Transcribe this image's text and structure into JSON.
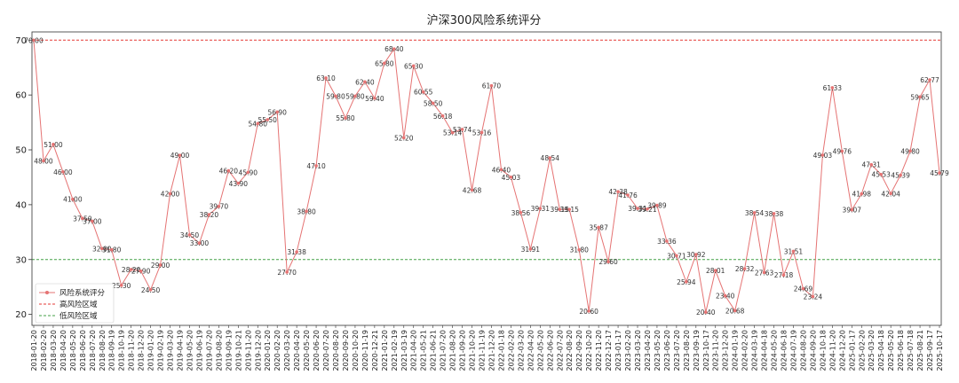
{
  "chart_data": {
    "type": "line",
    "title": "沪深300风险系统评分",
    "xlabel": "",
    "ylabel": "",
    "ylim": [
      18,
      71.5
    ],
    "yticks": [
      20,
      30,
      40,
      50,
      60,
      70
    ],
    "grid": false,
    "legend_placement": "bottom-left",
    "series": [
      {
        "name": "风险系统评分",
        "color": "#e57373",
        "values": [
          70.0,
          48.0,
          51.0,
          46.0,
          41.0,
          37.5,
          37.0,
          32.0,
          31.8,
          25.3,
          28.2,
          27.9,
          24.5,
          29.0,
          42.0,
          49.0,
          34.5,
          33.0,
          38.2,
          39.7,
          46.2,
          43.9,
          45.9,
          54.8,
          55.5,
          56.9,
          27.7,
          31.38,
          38.8,
          47.1,
          63.1,
          59.8,
          55.8,
          59.8,
          62.4,
          59.4,
          65.8,
          68.4,
          52.2,
          65.3,
          60.55,
          58.5,
          56.18,
          53.14,
          53.74,
          42.68,
          53.16,
          61.7,
          46.4,
          45.03,
          38.56,
          31.91,
          39.31,
          48.54,
          39.15,
          39.15,
          31.8,
          20.6,
          35.87,
          29.6,
          42.38,
          41.76,
          39.31,
          39.21,
          39.89,
          33.36,
          30.71,
          25.94,
          30.92,
          20.4,
          28.01,
          23.4,
          20.68,
          28.32,
          38.54,
          27.63,
          38.38,
          27.18,
          31.51,
          24.69,
          23.24,
          49.03,
          61.33,
          49.76,
          39.07,
          41.98,
          47.31,
          45.53,
          42.04,
          45.39,
          49.8,
          59.65,
          62.77,
          45.79
        ],
        "labels": [
          "70.00",
          "48.00",
          "51.00",
          "46.00",
          "41.00",
          "37.50",
          "37.00",
          "32.00",
          "31.80",
          "25.30",
          "28.20",
          "27.90",
          "24.50",
          "29.00",
          "42.00",
          "49.00",
          "34.50",
          "33.00",
          "38.20",
          "39.70",
          "46.20",
          "43.90",
          "45.90",
          "54.80",
          "55.50",
          "56.90",
          "27.70",
          "31.38",
          "38.80",
          "47.10",
          "63.10",
          "59.80",
          "55.80",
          "59.80",
          "62.40",
          "59.40",
          "65.80",
          "68.40",
          "52.20",
          "65.30",
          "60.55",
          "58.50",
          "56.18",
          "53.14",
          "53.74",
          "42.68",
          "53.16",
          "61.70",
          "46.40",
          "45.03",
          "38.56",
          "31.91",
          "39.31",
          "48.54",
          "39.15",
          "39.15",
          "31.80",
          "20.60",
          "35.87",
          "29.60",
          "42.38",
          "41.76",
          "39.31",
          "39.21",
          "39.89",
          "33.36",
          "30.71",
          "25.94",
          "30.92",
          "20.40",
          "28.01",
          "23.40",
          "20.68",
          "28.32",
          "38.54",
          "27.63",
          "38.38",
          "27.18",
          "31.51",
          "24.69",
          "23.24",
          "49.03",
          "61.33",
          "49.76",
          "39.07",
          "41.98",
          "47.31",
          "45.53",
          "42.04",
          "45.39",
          "49.80",
          "59.65",
          "62.77",
          "45.79"
        ]
      },
      {
        "name": "高风险区域",
        "color": "#e53935",
        "style": "dashed",
        "value": 70
      },
      {
        "name": "低风险区域",
        "color": "#43a047",
        "style": "dashed",
        "value": 30
      }
    ],
    "x": [
      "2018-01-20",
      "2018-02-20",
      "2018-03-20",
      "2018-04-20",
      "2018-05-20",
      "2018-06-20",
      "2018-07-20",
      "2018-08-20",
      "2018-09-19",
      "2018-10-19",
      "2018-11-20",
      "2018-12-20",
      "2019-01-20",
      "2019-02-19",
      "2019-03-20",
      "2019-04-19",
      "2019-05-20",
      "2019-06-19",
      "2019-07-20",
      "2019-08-20",
      "2019-09-19",
      "2019-10-21",
      "2019-11-20",
      "2019-12-20",
      "2020-01-20",
      "2020-02-20",
      "2020-03-20",
      "2020-04-20",
      "2020-05-20",
      "2020-06-20",
      "2020-07-20",
      "2020-08-20",
      "2020-09-20",
      "2020-10-20",
      "2020-11-19",
      "2020-12-21",
      "2021-01-20",
      "2021-02-19",
      "2021-03-19",
      "2021-04-20",
      "2021-05-21",
      "2021-06-21",
      "2021-07-20",
      "2021-08-20",
      "2021-09-20",
      "2021-10-20",
      "2021-11-19",
      "2021-12-20",
      "2022-01-18",
      "2022-02-20",
      "2022-03-20",
      "2022-04-20",
      "2022-05-20",
      "2022-06-20",
      "2022-07-20",
      "2022-08-20",
      "2022-09-20",
      "2022-10-20",
      "2022-11-20",
      "2022-12-17",
      "2023-01-17",
      "2023-02-20",
      "2023-03-20",
      "2023-04-20",
      "2023-05-20",
      "2023-06-20",
      "2023-07-20",
      "2023-08-20",
      "2023-09-19",
      "2023-10-17",
      "2023-11-20",
      "2023-12-20",
      "2024-01-19",
      "2024-02-20",
      "2024-03-19",
      "2024-04-18",
      "2024-05-20",
      "2024-06-18",
      "2024-07-19",
      "2024-08-20",
      "2024-09-20",
      "2024-10-18",
      "2024-11-20",
      "2024-12-20",
      "2025-01-17",
      "2025-02-20",
      "2025-03-20",
      "2025-04-18",
      "2025-05-20",
      "2025-06-18",
      "2025-07-18",
      "2025-08-21",
      "2025-09-17",
      "2025-10-17"
    ],
    "legend": [
      "风险系统评分",
      "高风险区域",
      "低风险区域"
    ]
  }
}
